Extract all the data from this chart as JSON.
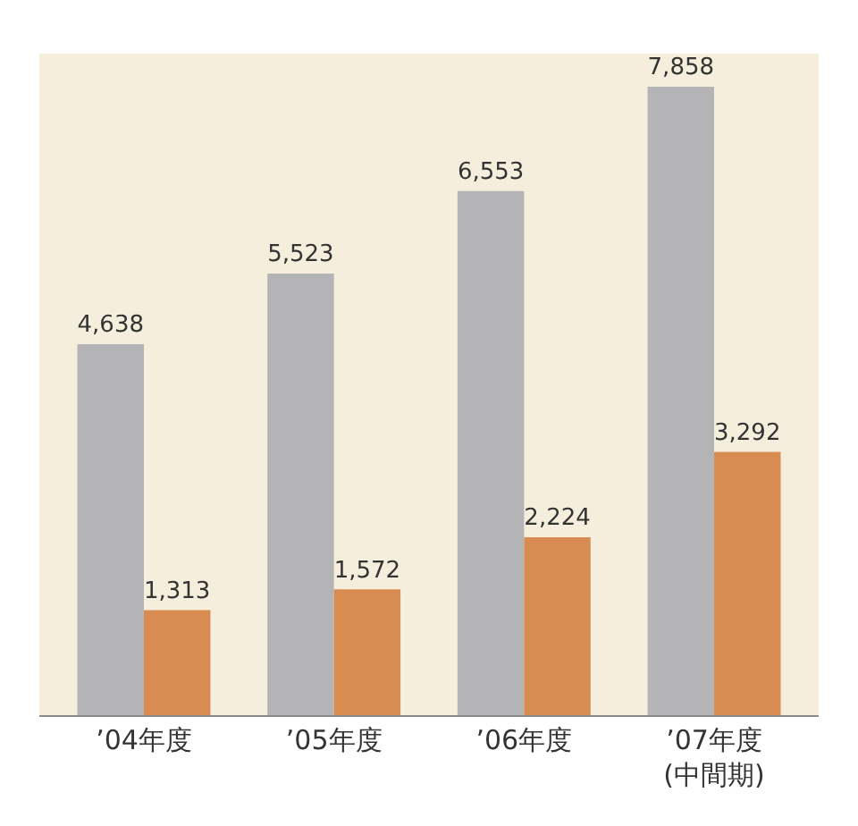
{
  "chart_data": {
    "type": "bar",
    "categories": [
      "’04年度",
      "’05年度",
      "’06年度",
      "’07年度\n(中間期)"
    ],
    "series": [
      {
        "color": "#b4b4b6",
        "values": [
          4638,
          5523,
          6553,
          7858
        ],
        "value_labels": [
          "4,638",
          "5,523",
          "6,553",
          "7,858"
        ]
      },
      {
        "color": "#d98c52",
        "values": [
          1313,
          1572,
          2224,
          3292
        ],
        "value_labels": [
          "1,313",
          "1,572",
          "2,224",
          "3,292"
        ]
      }
    ]
  }
}
